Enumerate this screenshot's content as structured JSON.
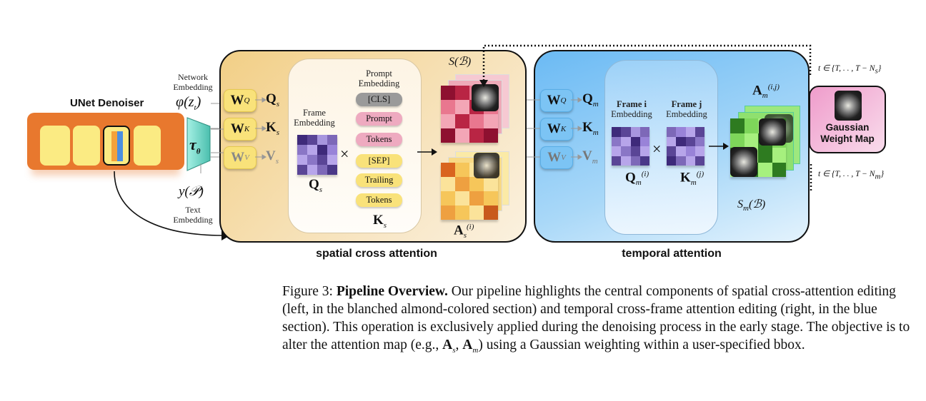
{
  "unet": {
    "title": "UNet Denoiser"
  },
  "inputs": {
    "network_embedding": "Network\nEmbedding",
    "phi": "φ(z",
    "phi_sub": "t",
    "phi_close": ")",
    "tau": "τ",
    "tau_sub": "θ",
    "y": "y(𝒫)",
    "text_embedding": "Text\nEmbedding"
  },
  "spatial": {
    "label": "spatial cross attention",
    "weights": [
      {
        "w": "W",
        "sub": "Q",
        "out": "Q",
        "out_sub": "s"
      },
      {
        "w": "W",
        "sub": "K",
        "out": "K",
        "out_sub": "s"
      },
      {
        "w": "W",
        "sub": "V",
        "out": "V",
        "out_sub": "s"
      }
    ],
    "frame_embedding": "Frame\nEmbedding",
    "q": "Q",
    "q_sub": "s",
    "prompt_embedding": "Prompt\nEmbedding",
    "tokens": [
      {
        "label": "[CLS]",
        "color": "#9a9a9a"
      },
      {
        "label": "Prompt",
        "color": "#eeaac0"
      },
      {
        "label": "Tokens",
        "color": "#eeaac0"
      },
      {
        "label": "[SEP]",
        "color": "#f9e27a"
      },
      {
        "label": "Trailing",
        "color": "#f9e27a"
      },
      {
        "label": "Tokens",
        "color": "#f9e27a"
      }
    ],
    "k": "K",
    "k_sub": "s",
    "times": "×",
    "s_b": "S(ℬ)",
    "a": "A",
    "a_sub": "s",
    "a_sup": "(i)"
  },
  "temporal": {
    "label": "temporal attention",
    "weights": [
      {
        "w": "W",
        "sub": "Q",
        "out": "Q",
        "out_sub": "m"
      },
      {
        "w": "W",
        "sub": "K",
        "out": "K",
        "out_sub": "m"
      },
      {
        "w": "W",
        "sub": "V",
        "out": "V",
        "out_sub": "m"
      }
    ],
    "frame_i": "Frame i",
    "frame_j": "Frame j",
    "embedding": "Embedding",
    "qi": "Q",
    "qi_sub": "m",
    "qi_sup": "(i)",
    "kj": "K",
    "kj_sub": "m",
    "kj_sup": "(j)",
    "times": "×",
    "a": "A",
    "a_sub": "m",
    "a_sup": "(i,j)",
    "s_b": "S",
    "s_sub": "m",
    "s_b_rest": "(ℬ)"
  },
  "gaussian": {
    "label": "Gaussian\nWeight Map"
  },
  "timesteps": {
    "spatial": "t ∈ {T, . . , T − N",
    "spatial_sub": "s",
    "temporal": "t ∈ {T, . . , T − N",
    "temporal_sub": "m",
    "close": "}"
  },
  "caption": {
    "prefix": "Figure 3: ",
    "bold": "Pipeline Overview.",
    "text": " Our pipeline highlights the central components of spatial cross-attention editing (left, in the blanched almond-colored section) and temporal cross-frame attention editing (right, in the blue section). This operation is exclusively applied during the denoising process in the early stage. The objective is to alter the attention map (e.g., ",
    "as": "A",
    "as_sub": "s",
    "comma": ", ",
    "am": "A",
    "am_sub": "m",
    "end": ") using a Gaussian weighting within a user-specified bbox."
  },
  "colors": {
    "orange": "#e8782e",
    "spatial_bg": "#f3d9a0",
    "temporal_bg": "#7ec2f5",
    "pink": "#f2a7cf",
    "teal": "#6fd8c8"
  }
}
